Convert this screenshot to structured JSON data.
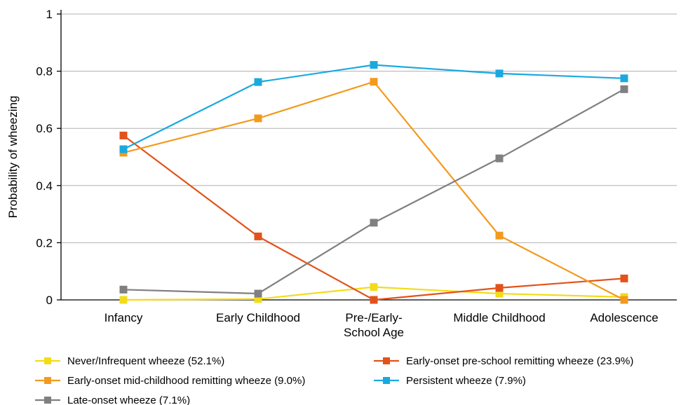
{
  "chart_data": {
    "type": "line",
    "title": "",
    "xlabel": "",
    "ylabel": "Probability of wheezing",
    "ylim": [
      0,
      1
    ],
    "yticks": [
      "0",
      "0.2",
      "0.4",
      "0.6",
      "0.8",
      "1"
    ],
    "categories": [
      [
        "Infancy"
      ],
      [
        "Early Childhood"
      ],
      [
        "Pre-/Early-",
        "School Age"
      ],
      [
        "Middle Childhood"
      ],
      [
        "Adolescence"
      ]
    ],
    "grid": true,
    "legend_position": "bottom",
    "series": [
      {
        "name": "Never/Infrequent wheeze (52.1%)",
        "color": "#f2dc1a",
        "values": [
          0.0,
          0.003,
          0.045,
          0.022,
          0.01
        ]
      },
      {
        "name": "Early-onset pre-school remitting wheeze (23.9%)",
        "color": "#e2531a",
        "values": [
          0.575,
          0.222,
          0.0,
          0.042,
          0.075
        ]
      },
      {
        "name": "Early-onset mid-childhood remitting wheeze (9.0%)",
        "color": "#f39a1e",
        "values": [
          0.515,
          0.635,
          0.763,
          0.225,
          0.0
        ]
      },
      {
        "name": "Persistent wheeze (7.9%)",
        "color": "#1aa9df",
        "values": [
          0.527,
          0.762,
          0.822,
          0.792,
          0.775
        ]
      },
      {
        "name": "Late-onset wheeze (7.1%)",
        "color": "#808080",
        "values": [
          0.036,
          0.022,
          0.27,
          0.495,
          0.737
        ]
      }
    ]
  }
}
